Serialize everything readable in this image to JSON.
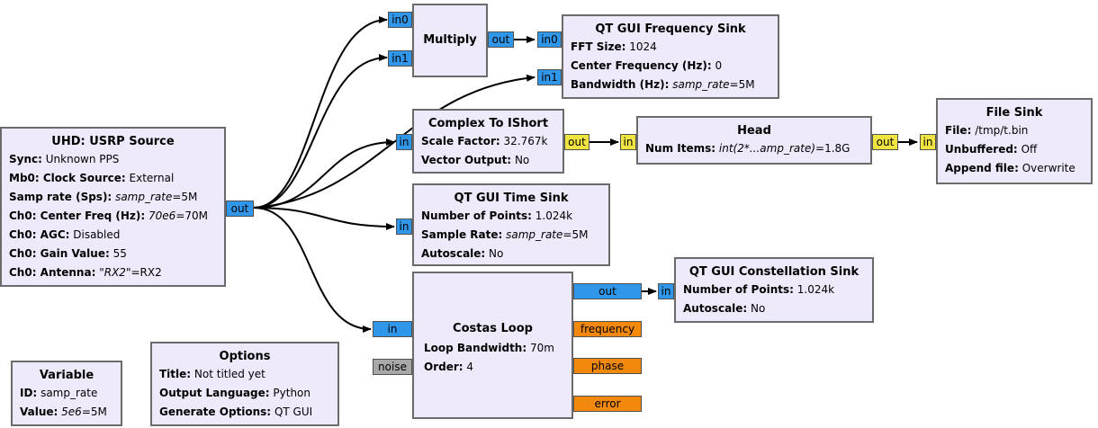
{
  "blocks": {
    "usrp": {
      "title": "UHD: USRP Source",
      "params": [
        {
          "key": "Sync:",
          "value": "Unknown PPS"
        },
        {
          "key": "Mb0: Clock Source:",
          "value": "External"
        },
        {
          "key": "Samp rate (Sps):",
          "expr": "samp_rate",
          "value": "=5M"
        },
        {
          "key": "Ch0: Center Freq (Hz):",
          "expr": "70e6",
          "value": "=70M"
        },
        {
          "key": "Ch0: AGC:",
          "value": "Disabled"
        },
        {
          "key": "Ch0: Gain Value:",
          "value": "55"
        },
        {
          "key": "Ch0: Antenna:",
          "value": "\"RX2\"=RX2",
          "value_parts": [
            "\"",
            "RX2",
            "\"=RX2"
          ]
        }
      ],
      "ports": {
        "out": "out"
      }
    },
    "multiply": {
      "title": "Multiply",
      "ports": {
        "in0": "in0",
        "in1": "in1",
        "out": "out"
      }
    },
    "freq_sink": {
      "title": "QT GUI Frequency Sink",
      "params": [
        {
          "key": "FFT Size:",
          "value": "1024"
        },
        {
          "key": "Center Frequency (Hz):",
          "value": "0"
        },
        {
          "key": "Bandwidth (Hz):",
          "expr": "samp_rate",
          "value": "=5M"
        }
      ],
      "ports": {
        "in0": "in0",
        "in1": "in1"
      }
    },
    "c2ishort": {
      "title": "Complex To IShort",
      "params": [
        {
          "key": "Scale Factor:",
          "value": "32.767k"
        },
        {
          "key": "Vector Output:",
          "value": "No"
        }
      ],
      "ports": {
        "in": "in",
        "out": "out"
      }
    },
    "head": {
      "title": "Head",
      "params": [
        {
          "key": "Num Items:",
          "expr": "int(2*...amp_rate)",
          "value": "=1.8G"
        }
      ],
      "ports": {
        "in": "in",
        "out": "out"
      }
    },
    "file_sink": {
      "title": "File Sink",
      "params": [
        {
          "key": "File:",
          "value": "/tmp/t.bin"
        },
        {
          "key": "Unbuffered:",
          "value": "Off"
        },
        {
          "key": "Append file:",
          "value": "Overwrite"
        }
      ],
      "ports": {
        "in": "in"
      }
    },
    "time_sink": {
      "title": "QT GUI Time Sink",
      "params": [
        {
          "key": "Number of Points:",
          "value": "1.024k"
        },
        {
          "key": "Sample Rate:",
          "expr": "samp_rate",
          "value": "=5M"
        },
        {
          "key": "Autoscale:",
          "value": "No"
        }
      ],
      "ports": {
        "in": "in"
      }
    },
    "costas": {
      "title": "Costas Loop",
      "params": [
        {
          "key": "Loop Bandwidth:",
          "value": "70m"
        },
        {
          "key": "Order:",
          "value": "4"
        }
      ],
      "ports": {
        "in": "in",
        "noise": "noise",
        "out": "out",
        "frequency": "frequency",
        "phase": "phase",
        "error": "error"
      }
    },
    "constellation": {
      "title": "QT GUI Constellation Sink",
      "params": [
        {
          "key": "Number of Points:",
          "value": "1.024k"
        },
        {
          "key": "Autoscale:",
          "value": "No"
        }
      ],
      "ports": {
        "in": "in"
      }
    },
    "variable": {
      "title": "Variable",
      "params": [
        {
          "key": "ID:",
          "value": "samp_rate"
        },
        {
          "key": "Value:",
          "expr": "5e6",
          "value": "=5M"
        }
      ]
    },
    "options": {
      "title": "Options",
      "params": [
        {
          "key": "Title:",
          "value": "Not titled yet"
        },
        {
          "key": "Output Language:",
          "value": "Python"
        },
        {
          "key": "Generate Options:",
          "value": "QT GUI"
        }
      ]
    }
  },
  "colors": {
    "block_fill": "#efeafb",
    "block_border": "#6b6b6b",
    "port_complex": "#2f96ea",
    "port_short": "#f0e440",
    "port_float": "#f2880c",
    "port_message": "#a8a8a8",
    "wire": "#000000"
  }
}
